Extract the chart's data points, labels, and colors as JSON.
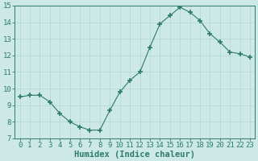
{
  "x": [
    0,
    1,
    2,
    3,
    4,
    5,
    6,
    7,
    8,
    9,
    10,
    11,
    12,
    13,
    14,
    15,
    16,
    17,
    18,
    19,
    20,
    21,
    22,
    23
  ],
  "y": [
    9.5,
    9.6,
    9.6,
    9.2,
    8.5,
    8.0,
    7.7,
    7.5,
    7.5,
    8.7,
    9.8,
    10.5,
    11.0,
    12.5,
    13.9,
    14.4,
    14.9,
    14.6,
    14.1,
    13.3,
    12.8,
    12.2,
    12.1,
    11.9
  ],
  "line_color": "#2d7a6e",
  "marker": "+",
  "marker_size": 4,
  "marker_lw": 1.2,
  "bg_color": "#cde9e5",
  "grid_color": "#b8d9d4",
  "ylim": [
    7,
    15
  ],
  "xlim": [
    -0.5,
    23.5
  ],
  "yticks": [
    7,
    8,
    9,
    10,
    11,
    12,
    13,
    14,
    15
  ],
  "xtick_labels": [
    "0",
    "1",
    "2",
    "3",
    "4",
    "5",
    "6",
    "7",
    "8",
    "9",
    "10",
    "11",
    "12",
    "13",
    "14",
    "15",
    "16",
    "17",
    "18",
    "19",
    "20",
    "21",
    "22",
    "23"
  ],
  "xlabel": "Humidex (Indice chaleur)",
  "xlabel_fontsize": 7.5,
  "tick_fontsize": 6.5,
  "axis_label_color": "#2d7a6e",
  "tick_color": "#2d7a6e",
  "spine_color": "#2d7a6e"
}
